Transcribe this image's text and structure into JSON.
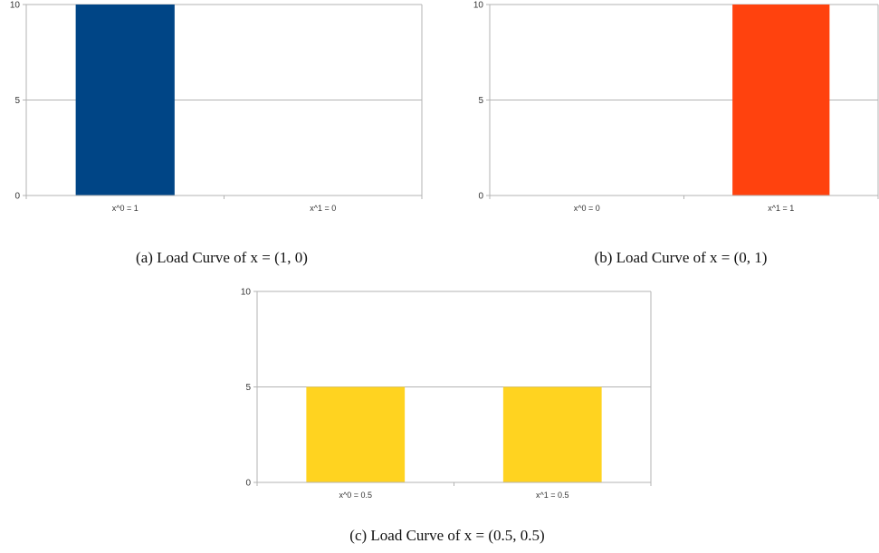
{
  "chart_data": [
    {
      "type": "bar",
      "categories": [
        "x^0 = 1",
        "x^1 = 0"
      ],
      "values": [
        10,
        0
      ],
      "color": "#004586",
      "yticks": [
        0,
        5,
        10
      ],
      "ylim": [
        0,
        10
      ],
      "grid": true,
      "caption": "(a)  Load Curve of x = (1, 0)"
    },
    {
      "type": "bar",
      "categories": [
        "x^0 = 0",
        "x^1 = 1"
      ],
      "values": [
        0,
        10
      ],
      "color": "#ff420e",
      "yticks": [
        0,
        5,
        10
      ],
      "ylim": [
        0,
        10
      ],
      "grid": true,
      "caption": "(b)  Load Curve of x = (0, 1)"
    },
    {
      "type": "bar",
      "categories": [
        "x^0 = 0.5",
        "x^1 = 0.5"
      ],
      "values": [
        5,
        5
      ],
      "color": "#ffd320",
      "yticks": [
        0,
        5,
        10
      ],
      "ylim": [
        0,
        10
      ],
      "grid": true,
      "caption": "(c)  Load Curve of x = (0.5, 0.5)"
    }
  ]
}
